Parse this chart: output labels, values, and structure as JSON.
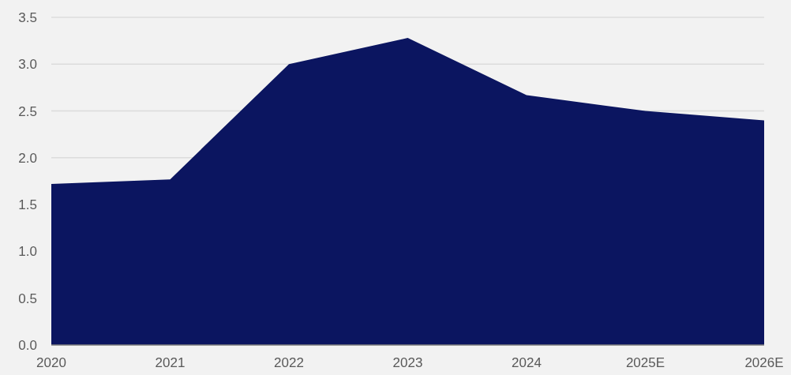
{
  "chart_data": {
    "type": "area",
    "categories": [
      "2020",
      "2021",
      "2022",
      "2023",
      "2024",
      "2025E",
      "2026E"
    ],
    "values": [
      1.72,
      1.77,
      3.0,
      3.28,
      2.67,
      2.5,
      2.4
    ],
    "color": "#0b1560",
    "ylim": [
      0,
      3.5
    ],
    "yticks": [
      {
        "value": 0,
        "label": "0.0"
      },
      0.5,
      {
        "value": 1,
        "label": "1.0"
      },
      1.5,
      {
        "value": 2,
        "label": "2.0"
      },
      2.5,
      {
        "value": 3,
        "label": "3.0"
      },
      3.5
    ],
    "grid": "y"
  }
}
